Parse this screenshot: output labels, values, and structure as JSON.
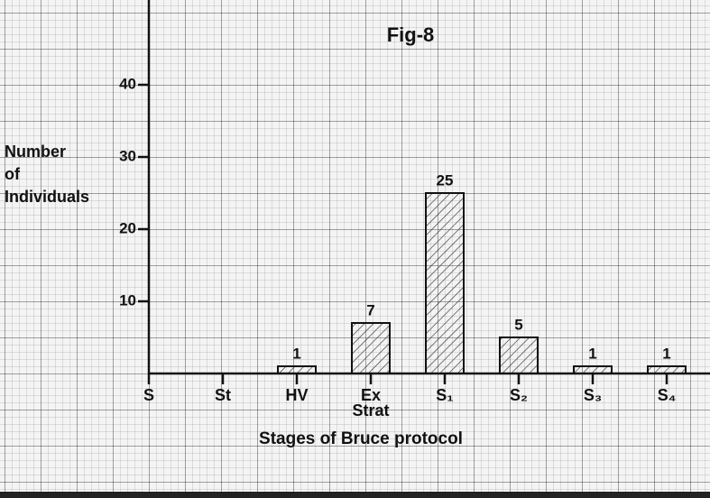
{
  "chart_data": {
    "type": "bar",
    "title": "Fig-8",
    "y_label": "Number\nof\nIndividuals",
    "x_label": "Stages of Bruce protocol",
    "categories": [
      "S",
      "St",
      "HV",
      "Ex\nStrat",
      "S₁",
      "S₂",
      "S₃",
      "S₄"
    ],
    "values": [
      null,
      null,
      1,
      7,
      25,
      5,
      1,
      1
    ],
    "color": "#333333",
    "ylim": [
      0,
      50
    ],
    "yticks": [
      10,
      20,
      30,
      40
    ]
  }
}
